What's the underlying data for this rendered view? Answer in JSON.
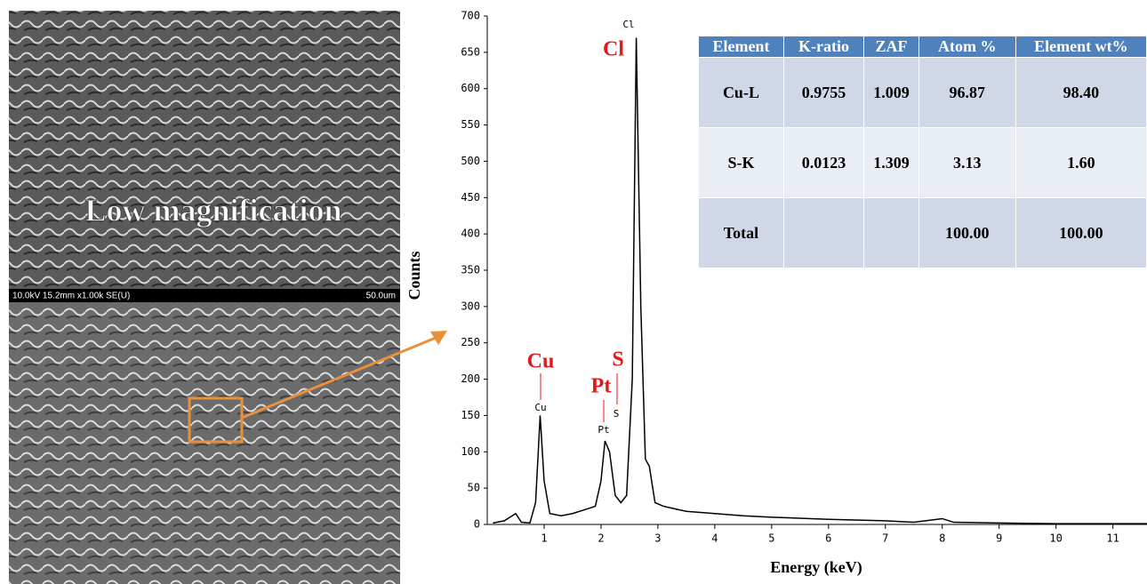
{
  "images": [
    {
      "label": "Low magnification",
      "caption": "10.0kV 15.2mm x1.00k SE(U)",
      "scale": "50.0um"
    }
  ],
  "chart_data": {
    "type": "line",
    "xlabel": "Energy (keV)",
    "ylabel": "Counts",
    "x": [
      0.1,
      0.3,
      0.5,
      0.6,
      0.75,
      0.85,
      0.93,
      1.0,
      1.1,
      1.3,
      1.5,
      1.7,
      1.9,
      2.0,
      2.07,
      2.15,
      2.25,
      2.35,
      2.45,
      2.55,
      2.62,
      2.7,
      2.78,
      2.85,
      2.95,
      3.1,
      3.5,
      4.0,
      4.5,
      5.0,
      6.0,
      7.0,
      7.5,
      8.0,
      8.2,
      9.0,
      10.0,
      11.0,
      11.6
    ],
    "series": [
      {
        "color": "#000000",
        "values": [
          2,
          5,
          15,
          3,
          2,
          30,
          150,
          60,
          15,
          12,
          15,
          20,
          25,
          60,
          115,
          100,
          40,
          30,
          40,
          200,
          670,
          300,
          90,
          80,
          30,
          25,
          18,
          15,
          12,
          10,
          7,
          5,
          3,
          8,
          3,
          2,
          1,
          1,
          1
        ]
      }
    ],
    "xlim": [
      0,
      11.6
    ],
    "ylim": [
      0,
      700
    ],
    "xticks": [
      1,
      2,
      3,
      4,
      5,
      6,
      7,
      8,
      9,
      10,
      11
    ],
    "yticks": [
      0,
      50,
      100,
      150,
      200,
      250,
      300,
      350,
      400,
      450,
      500,
      550,
      600,
      650,
      700
    ],
    "annotations": [
      "Cu",
      "Pt",
      "S",
      "Cl"
    ],
    "peak_labels": [
      "Cu",
      "Pt",
      "S",
      "Cl"
    ]
  },
  "table": {
    "header": [
      "Element",
      "K-ratio",
      "ZAF",
      "Atom %",
      "Element  wt%"
    ],
    "rows": [
      [
        "Cu-L",
        "0.9755",
        "1.009",
        "96.87",
        "98.40"
      ],
      [
        "S-K",
        "0.0123",
        "1.309",
        "3.13",
        "1.60"
      ],
      [
        "Total",
        "",
        "",
        "100.00",
        "100.00"
      ]
    ]
  }
}
